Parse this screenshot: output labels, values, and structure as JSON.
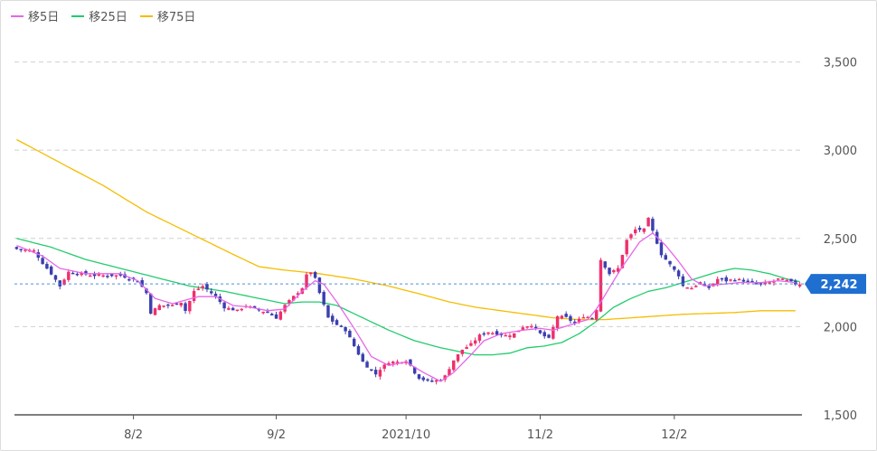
{
  "chart_data": {
    "type": "candlestick",
    "ylim": [
      1500,
      3800
    ],
    "yticks": [
      1500,
      2000,
      2500,
      3000,
      3500
    ],
    "ytick_labels": [
      "1,500",
      "2,000",
      "2,500",
      "3,000",
      "3,500"
    ],
    "x_tick_labels": [
      {
        "index": 27,
        "label": "8/2"
      },
      {
        "index": 60,
        "label": "9/2"
      },
      {
        "index": 90,
        "label": "2021/10"
      },
      {
        "index": 121,
        "label": "11/2"
      },
      {
        "index": 152,
        "label": "12/2"
      }
    ],
    "current_price": 2242,
    "current_price_label": "2,242",
    "colors": {
      "up": "#ef2f6c",
      "down": "#3b3fb0",
      "ma5": "#e766e8",
      "ma25": "#22cc6e",
      "ma75": "#f5bd00"
    },
    "legend": [
      {
        "key": "ma5",
        "label": "移5日",
        "color": "#e766e8"
      },
      {
        "key": "ma25",
        "label": "移25日",
        "color": "#22cc6e"
      },
      {
        "key": "ma75",
        "label": "移75日",
        "color": "#f5bd00"
      }
    ],
    "close_keypoints": [
      [
        0,
        2440
      ],
      [
        4,
        2430
      ],
      [
        6,
        2360
      ],
      [
        8,
        2300
      ],
      [
        10,
        2230
      ],
      [
        12,
        2310
      ],
      [
        18,
        2290
      ],
      [
        24,
        2290
      ],
      [
        28,
        2260
      ],
      [
        30,
        2190
      ],
      [
        31,
        2080
      ],
      [
        33,
        2120
      ],
      [
        36,
        2120
      ],
      [
        38,
        2140
      ],
      [
        39,
        2090
      ],
      [
        41,
        2200
      ],
      [
        43,
        2230
      ],
      [
        46,
        2170
      ],
      [
        48,
        2110
      ],
      [
        51,
        2090
      ],
      [
        53,
        2120
      ],
      [
        55,
        2100
      ],
      [
        58,
        2080
      ],
      [
        60,
        2050
      ],
      [
        62,
        2120
      ],
      [
        64,
        2170
      ],
      [
        66,
        2220
      ],
      [
        67,
        2290
      ],
      [
        68,
        2310
      ],
      [
        69,
        2270
      ],
      [
        70,
        2190
      ],
      [
        72,
        2050
      ],
      [
        74,
        2010
      ],
      [
        76,
        1980
      ],
      [
        78,
        1890
      ],
      [
        80,
        1800
      ],
      [
        82,
        1750
      ],
      [
        83,
        1730
      ],
      [
        84,
        1760
      ],
      [
        86,
        1800
      ],
      [
        88,
        1800
      ],
      [
        90,
        1810
      ],
      [
        91,
        1780
      ],
      [
        92,
        1740
      ],
      [
        93,
        1710
      ],
      [
        94,
        1700
      ],
      [
        96,
        1690
      ],
      [
        98,
        1700
      ],
      [
        99,
        1720
      ],
      [
        101,
        1810
      ],
      [
        103,
        1870
      ],
      [
        105,
        1900
      ],
      [
        107,
        1950
      ],
      [
        109,
        1970
      ],
      [
        111,
        1960
      ],
      [
        113,
        1950
      ],
      [
        115,
        1960
      ],
      [
        117,
        2000
      ],
      [
        119,
        2010
      ],
      [
        121,
        1960
      ],
      [
        123,
        1930
      ],
      [
        125,
        2060
      ],
      [
        127,
        2050
      ],
      [
        129,
        2020
      ],
      [
        131,
        2060
      ],
      [
        133,
        2050
      ],
      [
        134,
        2100
      ],
      [
        135,
        2380
      ],
      [
        137,
        2300
      ],
      [
        139,
        2330
      ],
      [
        141,
        2490
      ],
      [
        143,
        2550
      ],
      [
        145,
        2550
      ],
      [
        146,
        2610
      ],
      [
        147,
        2540
      ],
      [
        149,
        2410
      ],
      [
        151,
        2350
      ],
      [
        153,
        2290
      ],
      [
        154,
        2230
      ],
      [
        156,
        2220
      ],
      [
        158,
        2250
      ],
      [
        160,
        2220
      ],
      [
        162,
        2270
      ],
      [
        164,
        2260
      ],
      [
        166,
        2270
      ],
      [
        168,
        2260
      ],
      [
        170,
        2250
      ],
      [
        172,
        2240
      ],
      [
        174,
        2250
      ],
      [
        176,
        2270
      ],
      [
        178,
        2260
      ],
      [
        180,
        2242
      ]
    ],
    "ma5_keypoints": [
      [
        0,
        2460
      ],
      [
        6,
        2400
      ],
      [
        10,
        2330
      ],
      [
        16,
        2300
      ],
      [
        24,
        2300
      ],
      [
        28,
        2260
      ],
      [
        32,
        2160
      ],
      [
        36,
        2130
      ],
      [
        42,
        2170
      ],
      [
        46,
        2170
      ],
      [
        50,
        2120
      ],
      [
        54,
        2110
      ],
      [
        58,
        2090
      ],
      [
        62,
        2100
      ],
      [
        66,
        2200
      ],
      [
        69,
        2260
      ],
      [
        71,
        2240
      ],
      [
        74,
        2140
      ],
      [
        78,
        1990
      ],
      [
        82,
        1830
      ],
      [
        86,
        1780
      ],
      [
        90,
        1800
      ],
      [
        94,
        1740
      ],
      [
        98,
        1690
      ],
      [
        101,
        1740
      ],
      [
        105,
        1840
      ],
      [
        108,
        1920
      ],
      [
        112,
        1960
      ],
      [
        117,
        1980
      ],
      [
        121,
        1990
      ],
      [
        124,
        1980
      ],
      [
        128,
        2010
      ],
      [
        132,
        2040
      ],
      [
        134,
        2100
      ],
      [
        137,
        2220
      ],
      [
        140,
        2340
      ],
      [
        144,
        2480
      ],
      [
        147,
        2530
      ],
      [
        150,
        2460
      ],
      [
        153,
        2370
      ],
      [
        156,
        2270
      ],
      [
        159,
        2230
      ],
      [
        163,
        2240
      ],
      [
        167,
        2250
      ],
      [
        172,
        2250
      ],
      [
        176,
        2260
      ],
      [
        180,
        2250
      ]
    ],
    "ma25_keypoints": [
      [
        0,
        2500
      ],
      [
        8,
        2450
      ],
      [
        16,
        2380
      ],
      [
        24,
        2330
      ],
      [
        32,
        2280
      ],
      [
        40,
        2230
      ],
      [
        48,
        2200
      ],
      [
        56,
        2160
      ],
      [
        62,
        2130
      ],
      [
        66,
        2140
      ],
      [
        70,
        2140
      ],
      [
        74,
        2120
      ],
      [
        80,
        2050
      ],
      [
        86,
        1980
      ],
      [
        92,
        1920
      ],
      [
        98,
        1880
      ],
      [
        102,
        1860
      ],
      [
        106,
        1840
      ],
      [
        110,
        1840
      ],
      [
        114,
        1850
      ],
      [
        118,
        1880
      ],
      [
        122,
        1890
      ],
      [
        126,
        1910
      ],
      [
        130,
        1960
      ],
      [
        134,
        2030
      ],
      [
        138,
        2110
      ],
      [
        142,
        2160
      ],
      [
        146,
        2200
      ],
      [
        150,
        2220
      ],
      [
        154,
        2250
      ],
      [
        158,
        2280
      ],
      [
        162,
        2310
      ],
      [
        166,
        2330
      ],
      [
        170,
        2320
      ],
      [
        174,
        2300
      ],
      [
        178,
        2270
      ],
      [
        181,
        2255
      ]
    ],
    "ma75_keypoints": [
      [
        0,
        3060
      ],
      [
        10,
        2930
      ],
      [
        20,
        2800
      ],
      [
        30,
        2650
      ],
      [
        40,
        2530
      ],
      [
        50,
        2410
      ],
      [
        56,
        2340
      ],
      [
        62,
        2320
      ],
      [
        70,
        2300
      ],
      [
        78,
        2270
      ],
      [
        86,
        2230
      ],
      [
        94,
        2180
      ],
      [
        100,
        2140
      ],
      [
        106,
        2110
      ],
      [
        112,
        2090
      ],
      [
        118,
        2070
      ],
      [
        124,
        2050
      ],
      [
        130,
        2040
      ],
      [
        136,
        2040
      ],
      [
        142,
        2050
      ],
      [
        148,
        2060
      ],
      [
        154,
        2070
      ],
      [
        160,
        2075
      ],
      [
        166,
        2080
      ],
      [
        172,
        2090
      ],
      [
        180,
        2090
      ]
    ],
    "candle_count": 182
  }
}
